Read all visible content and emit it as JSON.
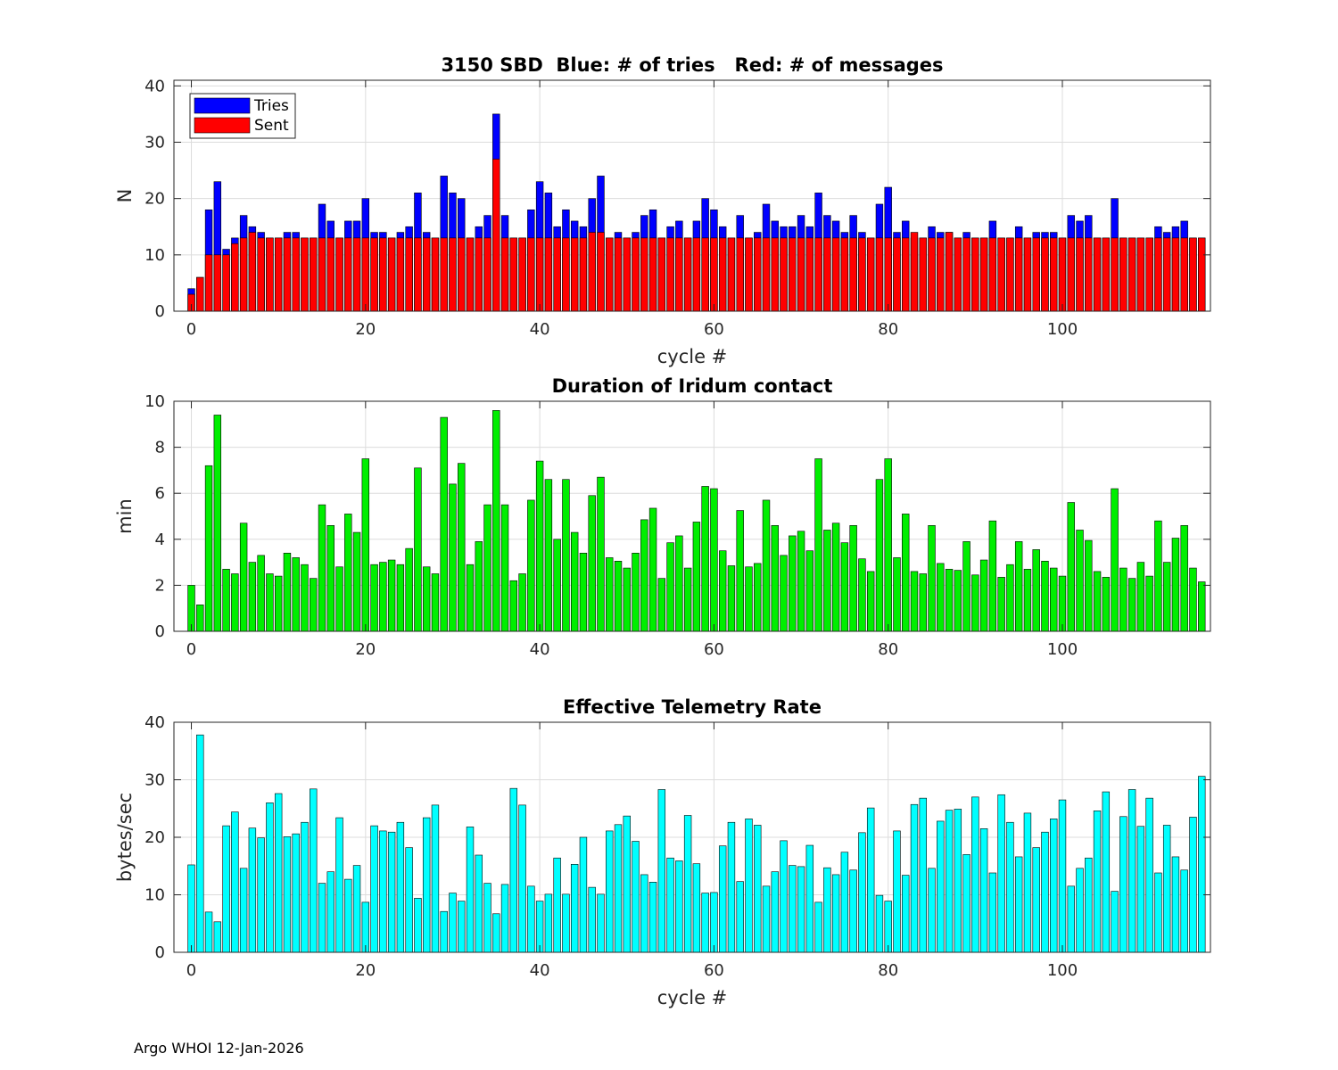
{
  "footer": "Argo WHOI 12-Jan-2026",
  "chart_data": [
    {
      "type": "bar",
      "title": "3150 SBD  Blue: # of tries   Red: # of messages",
      "xlabel": "cycle #",
      "ylabel": "N",
      "xlim": [
        -2,
        117
      ],
      "ylim": [
        0,
        41
      ],
      "xticks": [
        0,
        20,
        40,
        60,
        80,
        100
      ],
      "yticks": [
        0,
        10,
        20,
        30,
        40
      ],
      "grid": true,
      "legend": {
        "position": "top-left"
      },
      "x_start": 0,
      "series": [
        {
          "name": "Tries",
          "color": "#0000ff",
          "values": [
            4,
            6,
            18,
            23,
            11,
            13,
            17,
            15,
            14,
            13,
            13,
            14,
            14,
            13,
            13,
            19,
            16,
            13,
            16,
            16,
            20,
            14,
            14,
            13,
            14,
            15,
            21,
            14,
            13,
            24,
            21,
            20,
            13,
            15,
            17,
            35,
            17,
            13,
            13,
            18,
            23,
            21,
            15,
            18,
            16,
            15,
            20,
            24,
            13,
            14,
            13,
            14,
            17,
            18,
            13,
            15,
            16,
            13,
            16,
            20,
            18,
            15,
            13,
            17,
            13,
            14,
            19,
            16,
            15,
            15,
            17,
            15,
            21,
            17,
            16,
            14,
            17,
            14,
            13,
            19,
            22,
            14,
            16,
            13,
            13,
            15,
            14,
            14,
            13,
            14,
            13,
            13,
            16,
            13,
            13,
            15,
            13,
            14,
            14,
            14,
            13,
            17,
            16,
            17,
            13,
            13,
            20,
            13,
            13,
            13,
            13,
            15,
            14,
            15,
            16,
            13,
            13
          ]
        },
        {
          "name": "Sent",
          "color": "#ff0000",
          "values": [
            3,
            6,
            10,
            10,
            10,
            12,
            13,
            14,
            13,
            13,
            13,
            13,
            13,
            13,
            13,
            13,
            13,
            13,
            13,
            13,
            13,
            13,
            13,
            13,
            13,
            13,
            13,
            13,
            13,
            13,
            13,
            13,
            13,
            13,
            13,
            27,
            13,
            13,
            13,
            13,
            13,
            13,
            13,
            13,
            13,
            13,
            14,
            14,
            13,
            13,
            13,
            13,
            13,
            13,
            13,
            13,
            13,
            13,
            13,
            13,
            13,
            13,
            13,
            13,
            13,
            13,
            13,
            13,
            13,
            13,
            13,
            13,
            13,
            13,
            13,
            13,
            13,
            13,
            13,
            13,
            13,
            13,
            13,
            14,
            13,
            13,
            13,
            14,
            13,
            13,
            13,
            13,
            13,
            13,
            13,
            13,
            13,
            13,
            13,
            13,
            13,
            13,
            13,
            13,
            13,
            13,
            13,
            13,
            13,
            13,
            13,
            13,
            13,
            13,
            13,
            13,
            13
          ]
        }
      ]
    },
    {
      "type": "bar",
      "title": "Duration of Iridum contact",
      "xlabel": "",
      "ylabel": "min",
      "xlim": [
        -2,
        117
      ],
      "ylim": [
        0,
        10
      ],
      "xticks": [
        0,
        20,
        40,
        60,
        80,
        100
      ],
      "yticks": [
        0,
        2,
        4,
        6,
        8,
        10
      ],
      "grid": true,
      "x_start": 0,
      "series": [
        {
          "color": "#00ee00",
          "values": [
            2.0,
            1.15,
            7.2,
            9.4,
            2.7,
            2.5,
            4.7,
            3.0,
            3.3,
            2.5,
            2.4,
            3.4,
            3.2,
            2.9,
            2.3,
            5.5,
            4.6,
            2.8,
            5.1,
            4.3,
            7.5,
            2.9,
            3.0,
            3.1,
            2.9,
            3.6,
            7.1,
            2.8,
            2.5,
            9.3,
            6.4,
            7.3,
            2.9,
            3.9,
            5.5,
            9.6,
            5.5,
            2.2,
            2.5,
            5.7,
            7.4,
            6.6,
            4.0,
            6.6,
            4.3,
            3.4,
            5.9,
            6.7,
            3.2,
            3.05,
            2.75,
            3.4,
            4.85,
            5.35,
            2.3,
            3.85,
            4.15,
            2.75,
            4.75,
            6.3,
            6.2,
            3.5,
            2.85,
            5.25,
            2.8,
            2.95,
            5.7,
            4.6,
            3.3,
            4.15,
            4.35,
            3.5,
            7.5,
            4.4,
            4.7,
            3.85,
            4.6,
            3.15,
            2.6,
            6.6,
            7.5,
            3.2,
            5.1,
            2.6,
            2.5,
            4.6,
            2.95,
            2.7,
            2.65,
            3.9,
            2.45,
            3.1,
            4.8,
            2.35,
            2.9,
            3.9,
            2.7,
            3.55,
            3.05,
            2.75,
            2.4,
            5.6,
            4.4,
            3.95,
            2.6,
            2.35,
            6.2,
            2.75,
            2.3,
            3.0,
            2.4,
            4.8,
            3.0,
            4.05,
            4.6,
            2.75,
            2.15
          ]
        }
      ]
    },
    {
      "type": "bar",
      "title": "Effective Telemetry Rate",
      "xlabel": "cycle #",
      "ylabel": "bytes/sec",
      "xlim": [
        -2,
        117
      ],
      "ylim": [
        0,
        40
      ],
      "xticks": [
        0,
        20,
        40,
        60,
        80,
        100
      ],
      "yticks": [
        0,
        10,
        20,
        30,
        40
      ],
      "grid": true,
      "x_start": 0,
      "series": [
        {
          "color": "#00ffff",
          "values": [
            15.2,
            37.8,
            7.0,
            5.3,
            22.0,
            24.4,
            14.6,
            21.6,
            19.9,
            26.0,
            27.6,
            20.1,
            20.6,
            22.6,
            28.4,
            12.0,
            14.0,
            23.4,
            12.7,
            15.1,
            8.7,
            22.0,
            21.1,
            20.9,
            22.6,
            18.2,
            9.4,
            23.4,
            25.6,
            7.1,
            10.3,
            8.9,
            21.8,
            16.9,
            12.0,
            6.7,
            11.8,
            28.5,
            25.6,
            11.5,
            8.9,
            10.1,
            16.4,
            10.1,
            15.3,
            20.0,
            11.3,
            10.1,
            21.1,
            22.2,
            23.7,
            19.3,
            13.5,
            12.2,
            28.3,
            16.4,
            15.9,
            23.8,
            15.4,
            10.3,
            10.4,
            18.5,
            22.6,
            12.3,
            23.2,
            22.1,
            11.5,
            14.0,
            19.4,
            15.1,
            14.9,
            18.6,
            8.7,
            14.7,
            13.5,
            17.4,
            14.3,
            20.8,
            25.1,
            9.9,
            8.9,
            21.1,
            13.4,
            25.7,
            26.8,
            14.6,
            22.8,
            24.7,
            24.9,
            17.0,
            27.0,
            21.5,
            13.8,
            27.4,
            22.6,
            16.6,
            24.2,
            18.2,
            20.9,
            23.2,
            26.5,
            11.5,
            14.6,
            16.4,
            24.6,
            27.9,
            10.6,
            23.6,
            28.3,
            21.9,
            26.8,
            13.8,
            22.1,
            16.6,
            14.3,
            23.5,
            30.6
          ]
        }
      ]
    }
  ]
}
